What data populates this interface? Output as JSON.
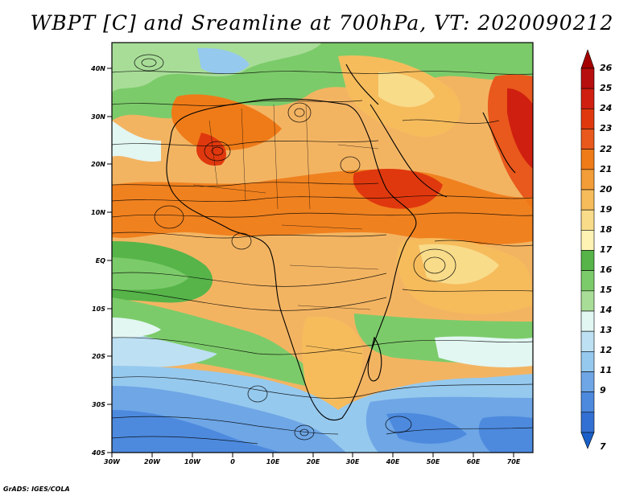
{
  "title": "WBPT [C] and Sreamline at 700hPa, VT: 2020090212",
  "credit": "GrADS: IGES/COLA",
  "map": {
    "lon_ticks": [
      "30W",
      "20W",
      "10W",
      "0",
      "10E",
      "20E",
      "30E",
      "40E",
      "50E",
      "60E",
      "70E"
    ],
    "lat_ticks": [
      "40N",
      "30N",
      "20N",
      "10N",
      "EQ",
      "10S",
      "20S",
      "30S",
      "40S"
    ]
  },
  "colorbar": {
    "labels": [
      "26",
      "25",
      "24",
      "23",
      "22",
      "21",
      "20",
      "19",
      "18",
      "17",
      "16",
      "15",
      "14",
      "13",
      "12",
      "11",
      "9",
      "7"
    ],
    "top_color": "#a40000",
    "bottom_color": "#1a5fc8",
    "colors": [
      "#b70e0e",
      "#cf1f10",
      "#e0380e",
      "#e9581c",
      "#ef7b18",
      "#f29d38",
      "#f6bc5c",
      "#f8dc8a",
      "#fff3b4",
      "#56b449",
      "#7ccb6a",
      "#a8dd98",
      "#e2f6f2",
      "#bde0f3",
      "#96c9ee",
      "#6ea6e6",
      "#4d8ade",
      "#3370d3"
    ]
  }
}
